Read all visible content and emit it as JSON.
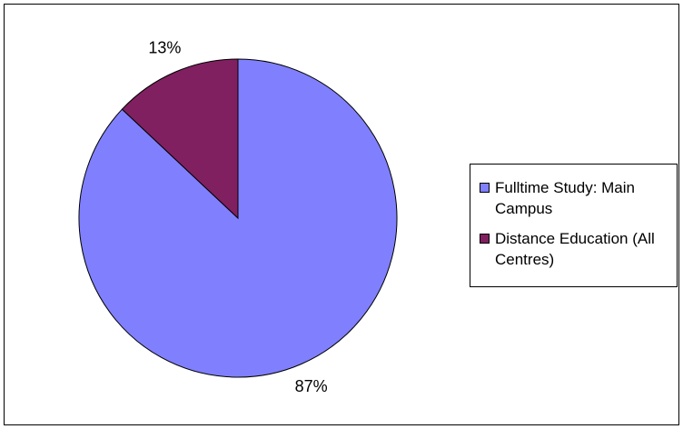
{
  "chart_data": {
    "type": "pie",
    "categories": [
      "Fulltime Study: Main Campus",
      "Distance Education (All Centres)"
    ],
    "values": [
      87,
      13
    ],
    "value_labels": [
      "87%",
      "13%"
    ],
    "colors": [
      "#8080ff",
      "#802060"
    ],
    "legend": "right"
  }
}
